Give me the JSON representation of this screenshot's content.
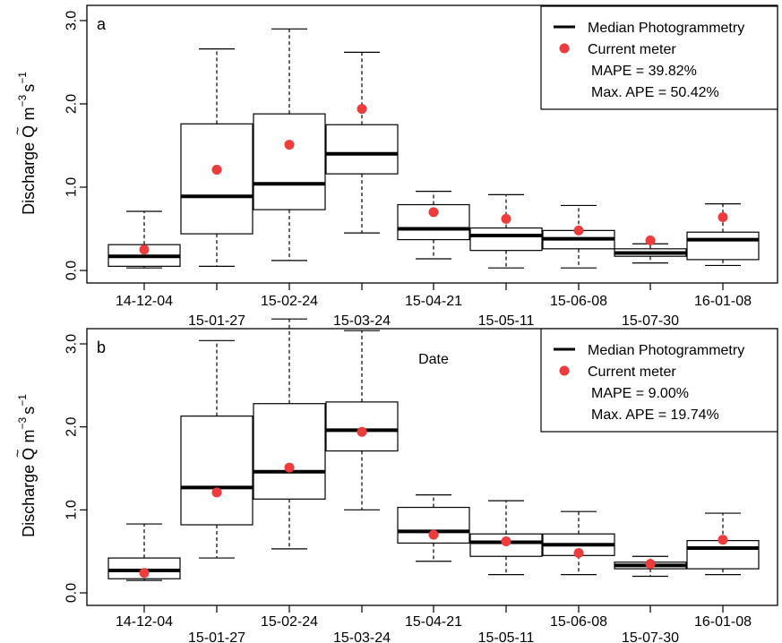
{
  "chart_data": [
    {
      "panel_label": "a",
      "type": "boxplot",
      "xlabel": "Date",
      "ylabel": {
        "prefix": "Discharge ",
        "symbol": "Q",
        "accent": "~",
        "units": " m",
        "exp1": "−3",
        "mid": "s",
        "exp2": "−1"
      },
      "ylim": [
        -0.1,
        3.6
      ],
      "yticks": [
        0.0,
        1.0,
        2.0,
        3.0
      ],
      "ytick_labels": [
        "0.0",
        "1.0",
        "2.0",
        "3.0"
      ],
      "categories": [
        "14-12-04",
        "15-01-27",
        "15-02-24",
        "15-03-24",
        "15-04-21",
        "15-05-11",
        "15-06-08",
        "15-07-30",
        "16-01-08"
      ],
      "boxes": [
        {
          "min": 0.03,
          "q1": 0.05,
          "median": 0.17,
          "q3": 0.31,
          "max": 0.71
        },
        {
          "min": 0.05,
          "q1": 0.44,
          "median": 0.89,
          "q3": 1.76,
          "max": 2.66
        },
        {
          "min": 0.12,
          "q1": 0.73,
          "median": 1.04,
          "q3": 1.88,
          "max": 2.9
        },
        {
          "min": 0.45,
          "q1": 1.16,
          "median": 1.4,
          "q3": 1.75,
          "max": 2.62
        },
        {
          "min": 0.14,
          "q1": 0.37,
          "median": 0.5,
          "q3": 0.79,
          "max": 0.95
        },
        {
          "min": 0.03,
          "q1": 0.24,
          "median": 0.42,
          "q3": 0.51,
          "max": 0.91
        },
        {
          "min": 0.03,
          "q1": 0.26,
          "median": 0.38,
          "q3": 0.48,
          "max": 0.78
        },
        {
          "min": 0.09,
          "q1": 0.17,
          "median": 0.21,
          "q3": 0.26,
          "max": 0.32
        },
        {
          "min": 0.06,
          "q1": 0.13,
          "median": 0.37,
          "q3": 0.46,
          "max": 0.8
        }
      ],
      "points": [
        0.25,
        1.21,
        1.51,
        1.94,
        0.7,
        0.62,
        0.48,
        0.36,
        0.64
      ],
      "legend": {
        "position": "top-right",
        "median_label": "Median Photogrammetry",
        "point_label": "Current meter",
        "mape": "MAPE = 39.82%",
        "max_ape": "Max. APE = 50.42%"
      }
    },
    {
      "panel_label": "b",
      "type": "boxplot",
      "xlabel": "",
      "ylabel": {
        "prefix": "Discharge ",
        "symbol": "Q",
        "accent": "~",
        "units": " m",
        "exp1": "−3",
        "mid": "s",
        "exp2": "−1"
      },
      "ylim": [
        -0.1,
        3.6
      ],
      "yticks": [
        0.0,
        1.0,
        2.0,
        3.0
      ],
      "ytick_labels": [
        "0.0",
        "1.0",
        "2.0",
        "3.0"
      ],
      "categories": [
        "14-12-04",
        "15-01-27",
        "15-02-24",
        "15-03-24",
        "15-04-21",
        "15-05-11",
        "15-06-08",
        "15-07-30",
        "16-01-08"
      ],
      "boxes": [
        {
          "min": 0.15,
          "q1": 0.17,
          "median": 0.27,
          "q3": 0.42,
          "max": 0.83
        },
        {
          "min": 0.42,
          "q1": 0.82,
          "median": 1.27,
          "q3": 2.13,
          "max": 3.04
        },
        {
          "min": 0.53,
          "q1": 1.13,
          "median": 1.46,
          "q3": 2.28,
          "max": 3.3
        },
        {
          "min": 1.0,
          "q1": 1.71,
          "median": 1.96,
          "q3": 2.3,
          "max": 3.16
        },
        {
          "min": 0.38,
          "q1": 0.6,
          "median": 0.74,
          "q3": 1.03,
          "max": 1.18
        },
        {
          "min": 0.22,
          "q1": 0.44,
          "median": 0.61,
          "q3": 0.71,
          "max": 1.11
        },
        {
          "min": 0.22,
          "q1": 0.45,
          "median": 0.58,
          "q3": 0.71,
          "max": 0.98
        },
        {
          "min": 0.2,
          "q1": 0.29,
          "median": 0.33,
          "q3": 0.37,
          "max": 0.44
        },
        {
          "min": 0.22,
          "q1": 0.29,
          "median": 0.54,
          "q3": 0.63,
          "max": 0.96
        }
      ],
      "points": [
        0.24,
        1.21,
        1.51,
        1.94,
        0.7,
        0.62,
        0.48,
        0.35,
        0.64
      ],
      "legend": {
        "position": "top-right",
        "median_label": "Median Photogrammetry",
        "point_label": "Current meter",
        "mape": "MAPE = 9.00%",
        "max_ape": "Max. APE = 19.74%"
      }
    }
  ],
  "colors": {
    "point": "#ee3b3b",
    "axis": "#000000"
  }
}
